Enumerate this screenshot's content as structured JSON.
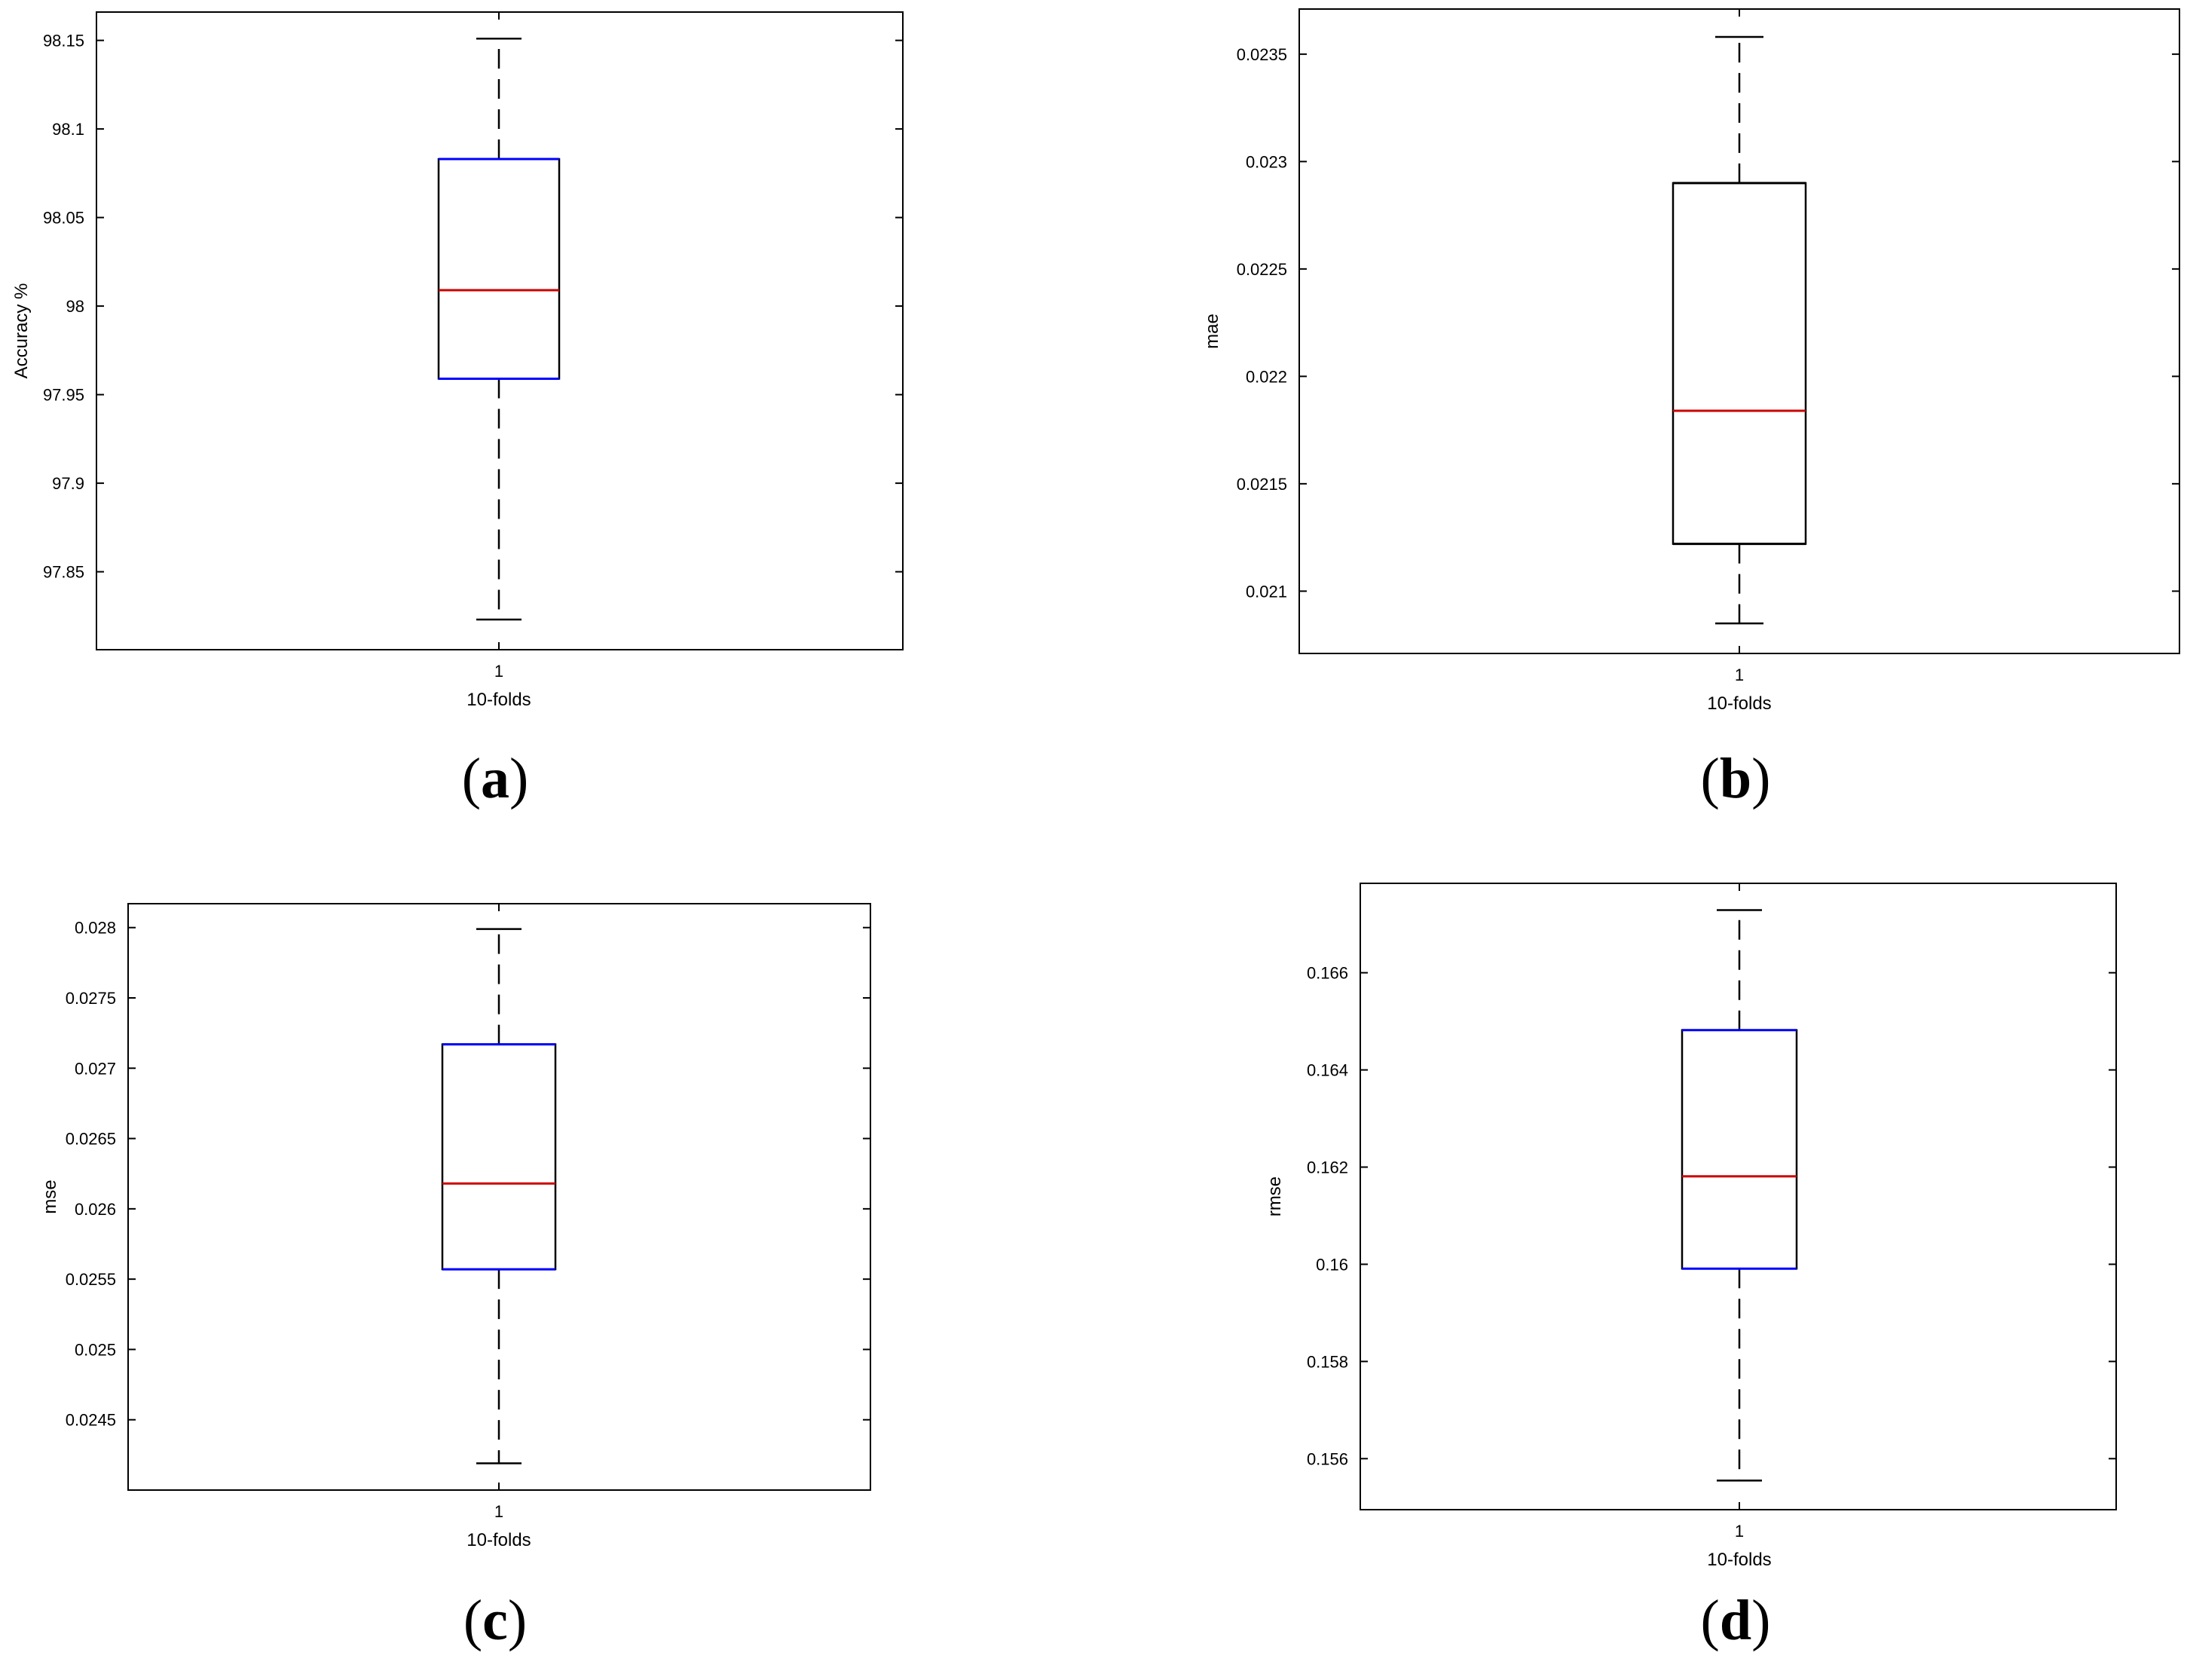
{
  "chart_data": [
    {
      "type": "box",
      "panel_caption": "a",
      "xlabel": "10-folds",
      "ylabel": "Accuracy %",
      "categories": [
        "1"
      ],
      "ylim": [
        97.806,
        98.166
      ],
      "yticks": [
        97.85,
        97.9,
        97.95,
        98,
        98.05,
        98.1,
        98.15
      ],
      "ytick_labels": [
        "97.85",
        "97.9",
        "97.95",
        "98",
        "98.05",
        "98.1",
        "98.15"
      ],
      "box": {
        "min": 97.823,
        "q1": 97.959,
        "median": 98.009,
        "q3": 98.083,
        "max": 98.151
      },
      "colors": {
        "box": "#000000",
        "quartile_edges": "#0000ff",
        "median": "#cc0000",
        "whisker": "#000000"
      },
      "grid": false
    },
    {
      "type": "box",
      "panel_caption": "b",
      "xlabel": "10-folds",
      "ylabel": "mae",
      "categories": [
        "1"
      ],
      "ylim": [
        0.02071,
        0.02371
      ],
      "yticks": [
        0.021,
        0.0215,
        0.022,
        0.0225,
        0.023,
        0.0235
      ],
      "ytick_labels": [
        "0.021",
        "0.0215",
        "0.022",
        "0.0225",
        "0.023",
        "0.0235"
      ],
      "box": {
        "min": 0.02085,
        "q1": 0.02122,
        "median": 0.02184,
        "q3": 0.0229,
        "max": 0.02358
      },
      "colors": {
        "box": "#000000",
        "quartile_edges": "#000000",
        "median": "#cc0000",
        "whisker": "#000000"
      },
      "grid": false
    },
    {
      "type": "box",
      "panel_caption": "c",
      "xlabel": "10-folds",
      "ylabel": "mse",
      "categories": [
        "1"
      ],
      "ylim": [
        0.024,
        0.02817
      ],
      "yticks": [
        0.0245,
        0.025,
        0.0255,
        0.026,
        0.0265,
        0.027,
        0.0275,
        0.028
      ],
      "ytick_labels": [
        "0.0245",
        "0.025",
        "0.0255",
        "0.026",
        "0.0265",
        "0.027",
        "0.0275",
        "0.028"
      ],
      "box": {
        "min": 0.02419,
        "q1": 0.02557,
        "median": 0.02618,
        "q3": 0.02717,
        "max": 0.02799
      },
      "colors": {
        "box": "#000000",
        "quartile_edges": "#0000ff",
        "median": "#cc0000",
        "whisker": "#000000"
      },
      "grid": false
    },
    {
      "type": "box",
      "panel_caption": "d",
      "xlabel": "10-folds",
      "ylabel": "rmse",
      "categories": [
        "1"
      ],
      "ylim": [
        0.15495,
        0.16784
      ],
      "yticks": [
        0.156,
        0.158,
        0.16,
        0.162,
        0.164,
        0.166
      ],
      "ytick_labels": [
        "0.156",
        "0.158",
        "0.16",
        "0.162",
        "0.164",
        "0.166"
      ],
      "box": {
        "min": 0.15555,
        "q1": 0.15991,
        "median": 0.16181,
        "q3": 0.16482,
        "max": 0.16729
      },
      "colors": {
        "box": "#000000",
        "quartile_edges": "#0000ff",
        "median": "#cc0000",
        "whisker": "#000000"
      },
      "grid": false
    }
  ]
}
